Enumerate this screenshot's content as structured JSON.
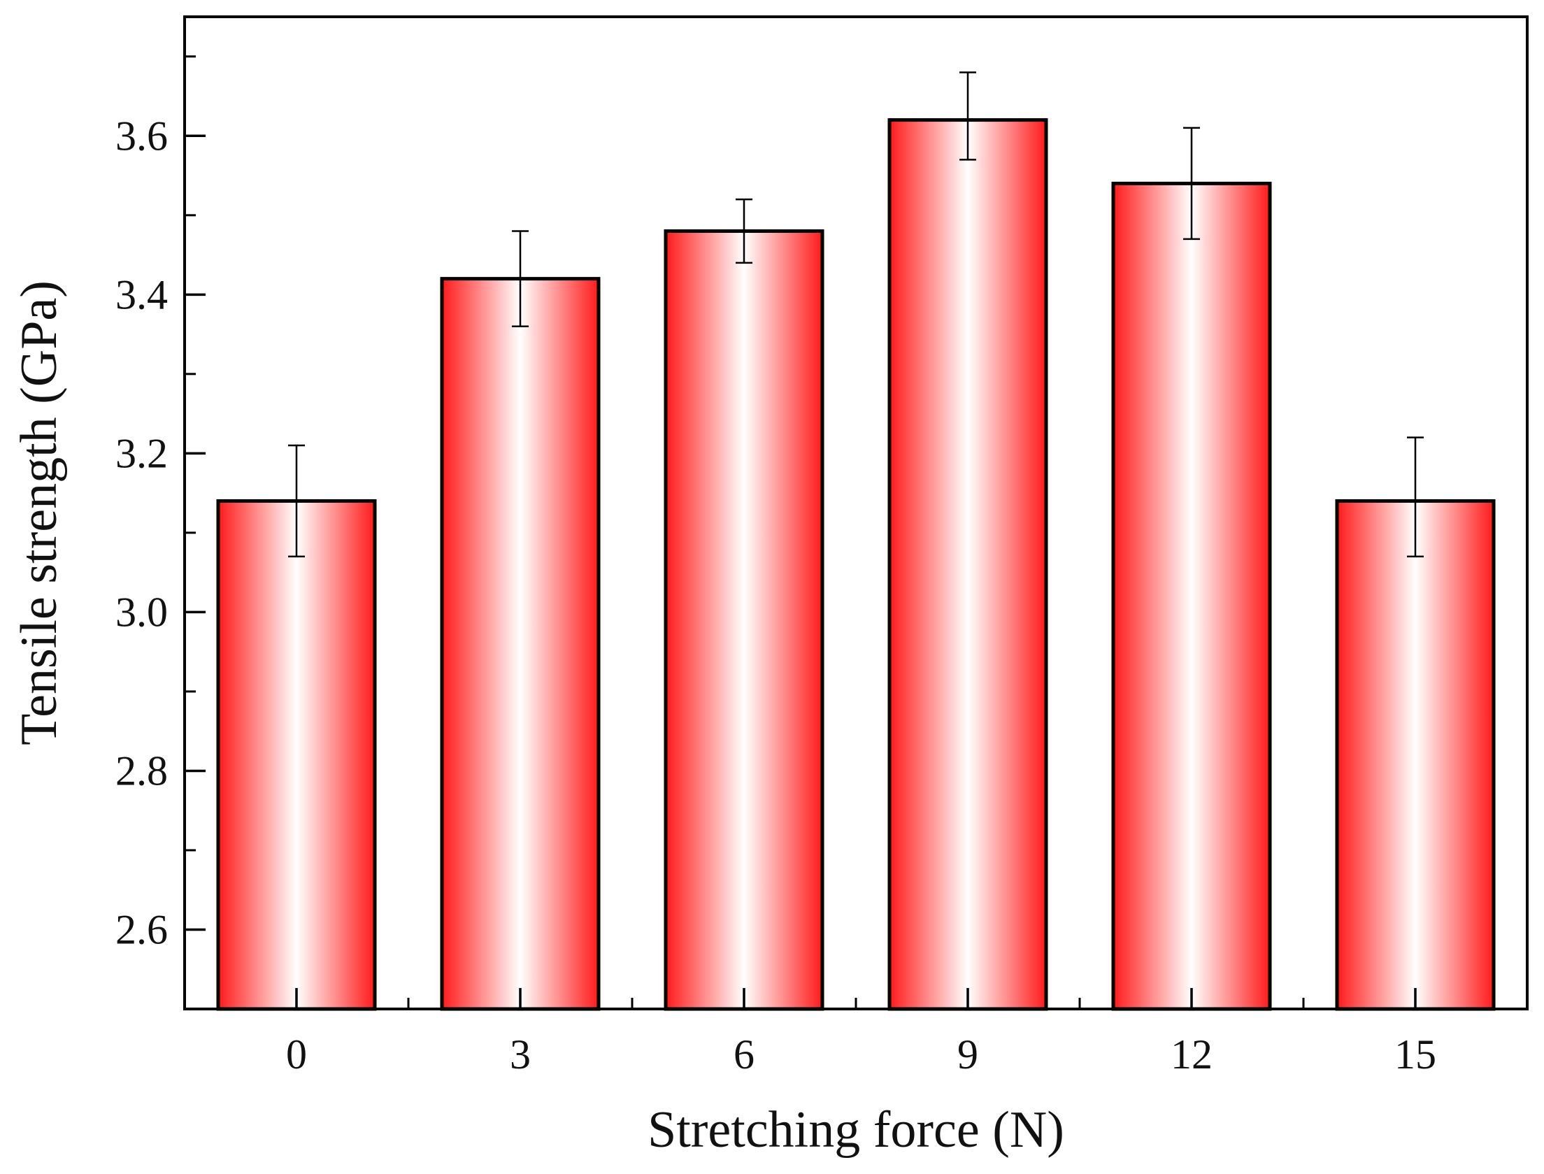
{
  "chart_data": {
    "type": "bar",
    "title": "",
    "xlabel": "Stretching force (N)",
    "ylabel": "Tensile strength (GPa)",
    "categories": [
      "0",
      "3",
      "6",
      "9",
      "12",
      "15"
    ],
    "values": [
      3.14,
      3.42,
      3.48,
      3.62,
      3.54,
      3.14
    ],
    "error_low": [
      3.07,
      3.36,
      3.44,
      3.57,
      3.47,
      3.07
    ],
    "error_high": [
      3.21,
      3.48,
      3.52,
      3.68,
      3.61,
      3.22
    ],
    "ylim": [
      2.5,
      3.75
    ],
    "yticks": [
      2.6,
      2.8,
      3.0,
      3.2,
      3.4,
      3.6
    ],
    "ytick_labels": [
      "2.6",
      "2.8",
      "3.0",
      "3.2",
      "3.4",
      "3.6"
    ],
    "grid": false,
    "legend": "none",
    "bar_style": {
      "edge_color": "#ff1a1a",
      "center_color": "#ffffff",
      "outline_color": "#000000"
    }
  }
}
